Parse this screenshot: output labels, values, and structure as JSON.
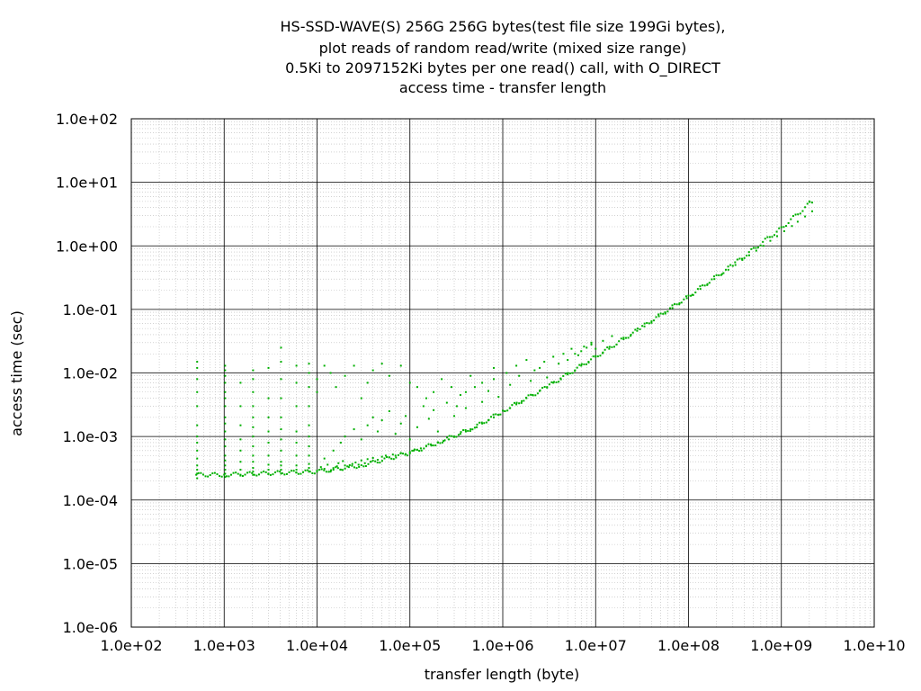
{
  "chart_data": {
    "type": "scatter",
    "title_lines": [
      "HS-SSD-WAVE(S) 256G 256G bytes(test file size 199Gi bytes),",
      "plot reads of random read/write (mixed size range)",
      "0.5Ki to 2097152Ki bytes per one read() call, with O_DIRECT",
      "access time - transfer length"
    ],
    "xlabel": "transfer length (byte)",
    "ylabel": "access time (sec)",
    "x_scale": "log",
    "y_scale": "log",
    "xlim": [
      100,
      10000000000
    ],
    "ylim": [
      1e-06,
      100
    ],
    "x_tick_labels": [
      "1.0e+02",
      "1.0e+03",
      "1.0e+04",
      "1.0e+05",
      "1.0e+06",
      "1.0e+07",
      "1.0e+08",
      "1.0e+09",
      "1.0e+10"
    ],
    "y_tick_labels": [
      "1.0e+02",
      "1.0e+01",
      "1.0e+00",
      "1.0e-01",
      "1.0e-02",
      "1.0e-03",
      "1.0e-04",
      "1.0e-05",
      "1.0e-06"
    ],
    "grid": true,
    "legend": "none",
    "point_color": "#00b000",
    "main_trend": [
      [
        500,
        0.00025
      ],
      [
        1000,
        0.00025
      ],
      [
        10000,
        0.00028
      ],
      [
        30000,
        0.00035
      ],
      [
        100000,
        0.00055
      ],
      [
        200000,
        0.0008
      ],
      [
        500000,
        0.0014
      ],
      [
        1000000,
        0.0025
      ],
      [
        3000000,
        0.006
      ],
      [
        10000000,
        0.018
      ],
      [
        30000000,
        0.05
      ],
      [
        100000000,
        0.16
      ],
      [
        300000000,
        0.5
      ],
      [
        1000000000,
        1.9
      ],
      [
        2147483648,
        5.0
      ]
    ],
    "points": [
      [
        512,
        0.00022
      ],
      [
        512,
        0.00026
      ],
      [
        512,
        0.0003
      ],
      [
        512,
        0.00035
      ],
      [
        512,
        0.00045
      ],
      [
        512,
        0.0006
      ],
      [
        512,
        0.0008
      ],
      [
        512,
        0.001
      ],
      [
        512,
        0.0015
      ],
      [
        512,
        0.003
      ],
      [
        512,
        0.005
      ],
      [
        512,
        0.008
      ],
      [
        512,
        0.012
      ],
      [
        512,
        0.015
      ],
      [
        1024,
        0.00023
      ],
      [
        1024,
        0.00026
      ],
      [
        1024,
        0.0003
      ],
      [
        1024,
        0.00035
      ],
      [
        1024,
        0.00042
      ],
      [
        1024,
        0.0005
      ],
      [
        1024,
        0.0007
      ],
      [
        1024,
        0.0009
      ],
      [
        1024,
        0.0012
      ],
      [
        1024,
        0.0016
      ],
      [
        1024,
        0.002
      ],
      [
        1024,
        0.003
      ],
      [
        1024,
        0.004
      ],
      [
        1024,
        0.005
      ],
      [
        1024,
        0.007
      ],
      [
        1024,
        0.009
      ],
      [
        1024,
        0.011
      ],
      [
        1024,
        0.013
      ],
      [
        1500,
        0.00025
      ],
      [
        1500,
        0.0003
      ],
      [
        1500,
        0.0004
      ],
      [
        1500,
        0.0006
      ],
      [
        1500,
        0.0009
      ],
      [
        1500,
        0.0015
      ],
      [
        1500,
        0.003
      ],
      [
        1500,
        0.007
      ],
      [
        2048,
        0.00025
      ],
      [
        2048,
        0.00028
      ],
      [
        2048,
        0.00032
      ],
      [
        2048,
        0.0004
      ],
      [
        2048,
        0.0005
      ],
      [
        2048,
        0.0007
      ],
      [
        2048,
        0.001
      ],
      [
        2048,
        0.0014
      ],
      [
        2048,
        0.002
      ],
      [
        2048,
        0.003
      ],
      [
        2048,
        0.005
      ],
      [
        2048,
        0.008
      ],
      [
        2048,
        0.011
      ],
      [
        3000,
        0.00026
      ],
      [
        3000,
        0.0003
      ],
      [
        3000,
        0.00036
      ],
      [
        3000,
        0.0005
      ],
      [
        3000,
        0.0008
      ],
      [
        3000,
        0.0012
      ],
      [
        3000,
        0.002
      ],
      [
        3000,
        0.004
      ],
      [
        3000,
        0.012
      ],
      [
        4096,
        0.00026
      ],
      [
        4096,
        0.0003
      ],
      [
        4096,
        0.00035
      ],
      [
        4096,
        0.0004
      ],
      [
        4096,
        0.0006
      ],
      [
        4096,
        0.0009
      ],
      [
        4096,
        0.0013
      ],
      [
        4096,
        0.002
      ],
      [
        4096,
        0.004
      ],
      [
        4096,
        0.008
      ],
      [
        4096,
        0.015
      ],
      [
        4096,
        0.025
      ],
      [
        6000,
        0.00027
      ],
      [
        6000,
        0.0003
      ],
      [
        6000,
        0.00035
      ],
      [
        6000,
        0.0005
      ],
      [
        6000,
        0.0008
      ],
      [
        6000,
        0.0012
      ],
      [
        6000,
        0.003
      ],
      [
        6000,
        0.007
      ],
      [
        6000,
        0.013
      ],
      [
        8192,
        0.00028
      ],
      [
        8192,
        0.00032
      ],
      [
        8192,
        0.00037
      ],
      [
        8192,
        0.0005
      ],
      [
        8192,
        0.0007
      ],
      [
        8192,
        0.001
      ],
      [
        8192,
        0.0015
      ],
      [
        8192,
        0.003
      ],
      [
        8192,
        0.006
      ],
      [
        8192,
        0.01
      ],
      [
        8192,
        0.014
      ],
      [
        10000,
        0.00029
      ],
      [
        11000,
        0.00033
      ],
      [
        12000,
        0.00031
      ],
      [
        13000,
        0.00036
      ],
      [
        14000,
        0.00028
      ],
      [
        15000,
        0.0003
      ],
      [
        16384,
        0.00034
      ],
      [
        17000,
        0.00038
      ],
      [
        18000,
        0.0003
      ],
      [
        19000,
        0.00041
      ],
      [
        20000,
        0.00035
      ],
      [
        22000,
        0.00033
      ],
      [
        24000,
        0.00037
      ],
      [
        26000,
        0.00039
      ],
      [
        28000,
        0.00036
      ],
      [
        30000,
        0.00042
      ],
      [
        32768,
        0.00038
      ],
      [
        35000,
        0.00044
      ],
      [
        38000,
        0.0004
      ],
      [
        40000,
        0.00046
      ],
      [
        45000,
        0.00043
      ],
      [
        50000,
        0.00048
      ],
      [
        55000,
        0.0005
      ],
      [
        60000,
        0.00047
      ],
      [
        65536,
        0.00052
      ],
      [
        70000,
        0.0005
      ],
      [
        80000,
        0.00055
      ],
      [
        90000,
        0.00053
      ],
      [
        100000,
        0.00057
      ],
      [
        110000,
        0.0006
      ],
      [
        120000,
        0.00062
      ],
      [
        131072,
        0.00065
      ],
      [
        150000,
        0.0007
      ],
      [
        170000,
        0.00072
      ],
      [
        200000,
        0.0008
      ],
      [
        230000,
        0.00085
      ],
      [
        262144,
        0.0009
      ],
      [
        300000,
        0.001
      ],
      [
        350000,
        0.0011
      ],
      [
        400000,
        0.0012
      ],
      [
        450000,
        0.0013
      ],
      [
        524288,
        0.0014
      ],
      [
        600000,
        0.0016
      ],
      [
        700000,
        0.0018
      ],
      [
        800000,
        0.002
      ],
      [
        900000,
        0.0022
      ],
      [
        1048576,
        0.0025
      ],
      [
        1200000,
        0.0028
      ],
      [
        1400000,
        0.0032
      ],
      [
        1600000,
        0.0036
      ],
      [
        1800000,
        0.004
      ],
      [
        2097152,
        0.0045
      ],
      [
        2500000,
        0.0052
      ],
      [
        3000000,
        0.006
      ],
      [
        3500000,
        0.007
      ],
      [
        4194304,
        0.0082
      ],
      [
        5000000,
        0.0095
      ],
      [
        6000000,
        0.011
      ],
      [
        7000000,
        0.013
      ],
      [
        8388608,
        0.015
      ],
      [
        10000000,
        0.018
      ],
      [
        12000000,
        0.021
      ],
      [
        14000000,
        0.024
      ],
      [
        16777216,
        0.028
      ],
      [
        20000000,
        0.034
      ],
      [
        24000000,
        0.04
      ],
      [
        28000000,
        0.046
      ],
      [
        33554432,
        0.054
      ],
      [
        40000000,
        0.065
      ],
      [
        48000000,
        0.078
      ],
      [
        56000000,
        0.09
      ],
      [
        67108864,
        0.105
      ],
      [
        80000000,
        0.125
      ],
      [
        96000000,
        0.15
      ],
      [
        110000000,
        0.17
      ],
      [
        134217728,
        0.21
      ],
      [
        160000000,
        0.25
      ],
      [
        190000000,
        0.3
      ],
      [
        230000000,
        0.36
      ],
      [
        268435456,
        0.42
      ],
      [
        320000000,
        0.5
      ],
      [
        380000000,
        0.6
      ],
      [
        450000000,
        0.71
      ],
      [
        536870912,
        0.84
      ],
      [
        640000000,
        1.0
      ],
      [
        760000000,
        1.2
      ],
      [
        900000000,
        1.42
      ],
      [
        1073741824,
        1.7
      ],
      [
        1300000000,
        2.05
      ],
      [
        1500000000,
        2.4
      ],
      [
        1800000000,
        2.9
      ],
      [
        2147483648,
        3.5
      ],
      [
        2147483648,
        4.8
      ],
      [
        2000000000,
        5.0
      ],
      [
        12000,
        0.00045
      ],
      [
        15000,
        0.0006
      ],
      [
        18000,
        0.0008
      ],
      [
        20000,
        0.001
      ],
      [
        25000,
        0.0013
      ],
      [
        30000,
        0.0009
      ],
      [
        35000,
        0.0015
      ],
      [
        40000,
        0.002
      ],
      [
        45000,
        0.0012
      ],
      [
        50000,
        0.0018
      ],
      [
        60000,
        0.0025
      ],
      [
        70000,
        0.0011
      ],
      [
        80000,
        0.0016
      ],
      [
        90000,
        0.0021
      ],
      [
        100000,
        0.0009
      ],
      [
        120000,
        0.0014
      ],
      [
        140000,
        0.003
      ],
      [
        160000,
        0.0019
      ],
      [
        180000,
        0.0026
      ],
      [
        200000,
        0.0012
      ],
      [
        250000,
        0.0034
      ],
      [
        300000,
        0.0021
      ],
      [
        350000,
        0.0045
      ],
      [
        400000,
        0.0028
      ],
      [
        500000,
        0.006
      ],
      [
        600000,
        0.0035
      ],
      [
        700000,
        0.0052
      ],
      [
        800000,
        0.008
      ],
      [
        900000,
        0.0042
      ],
      [
        1200000,
        0.0065
      ],
      [
        1500000,
        0.009
      ],
      [
        2000000,
        0.0075
      ],
      [
        2500000,
        0.012
      ],
      [
        3000000,
        0.0085
      ],
      [
        4000000,
        0.014
      ],
      [
        5000000,
        0.016
      ],
      [
        6000000,
        0.02
      ],
      [
        7000000,
        0.022
      ],
      [
        8000000,
        0.025
      ],
      [
        9000000,
        0.03
      ],
      [
        10000000,
        0.024
      ],
      [
        12000000,
        0.032
      ],
      [
        15000000,
        0.038
      ],
      [
        10000,
        0.005
      ],
      [
        10000,
        0.008
      ],
      [
        12000,
        0.013
      ],
      [
        14000,
        0.01
      ],
      [
        16000,
        0.006
      ],
      [
        20000,
        0.009
      ],
      [
        25000,
        0.013
      ],
      [
        30000,
        0.004
      ],
      [
        35000,
        0.007
      ],
      [
        40000,
        0.011
      ],
      [
        50000,
        0.014
      ],
      [
        60000,
        0.009
      ],
      [
        80000,
        0.013
      ],
      [
        100000,
        0.007
      ],
      [
        120000,
        0.006
      ],
      [
        150000,
        0.004
      ],
      [
        180000,
        0.005
      ],
      [
        220000,
        0.008
      ],
      [
        280000,
        0.006
      ],
      [
        320000,
        0.003
      ],
      [
        400000,
        0.005
      ],
      [
        450000,
        0.009
      ],
      [
        600000,
        0.007
      ],
      [
        800000,
        0.012
      ],
      [
        1100000,
        0.01
      ],
      [
        1400000,
        0.013
      ],
      [
        1800000,
        0.016
      ],
      [
        2200000,
        0.011
      ],
      [
        2800000,
        0.015
      ],
      [
        3500000,
        0.018
      ],
      [
        4500000,
        0.02
      ],
      [
        5500000,
        0.024
      ],
      [
        6500000,
        0.019
      ],
      [
        7500000,
        0.026
      ],
      [
        9000000,
        0.028
      ]
    ]
  }
}
